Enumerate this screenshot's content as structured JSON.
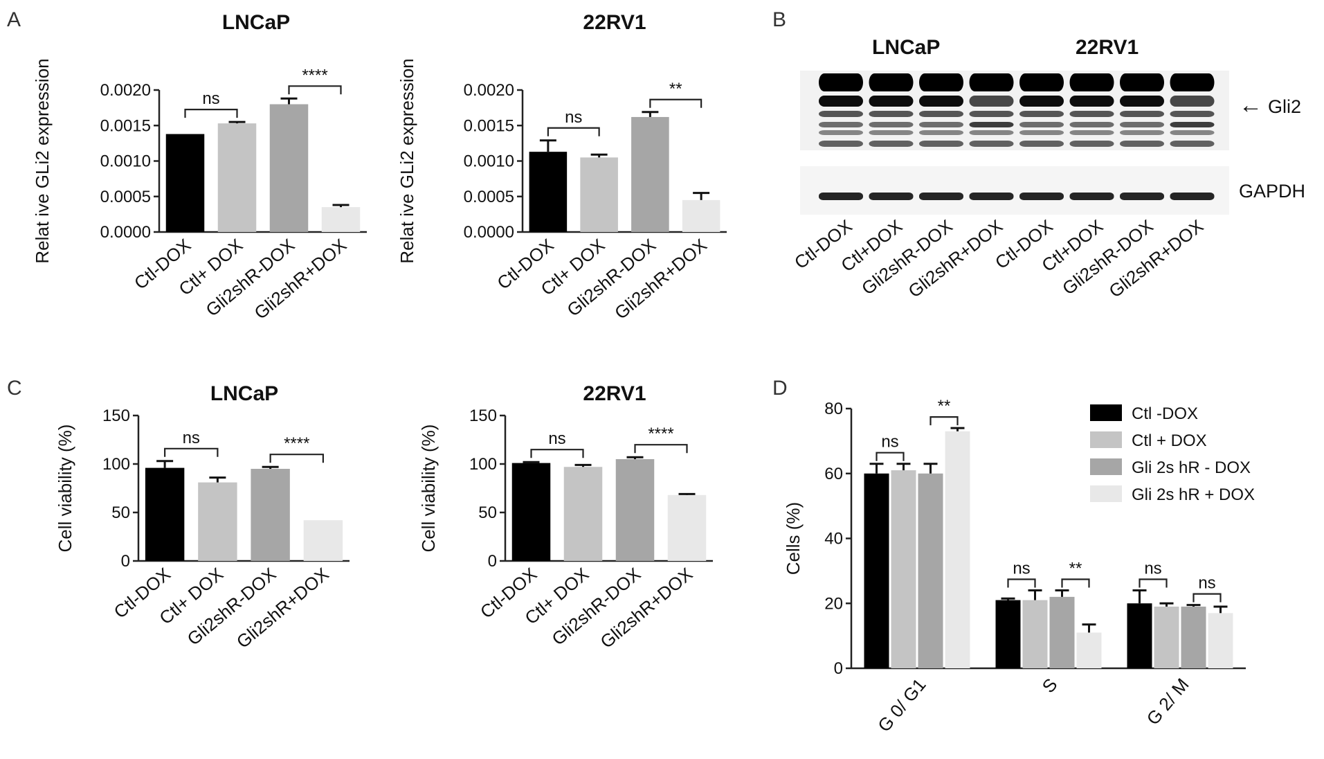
{
  "panel_letters": [
    "A",
    "B",
    "C",
    "D"
  ],
  "colors": {
    "black": "#000000",
    "light_gray": "#c4c4c4",
    "mid_gray": "#a6a6a6",
    "very_light": "#e8e8e8"
  },
  "chart_data": [
    {
      "id": "A1",
      "type": "bar",
      "title": "LNCaP",
      "ylabel": "Relat ive GLi2 expression",
      "categories": [
        "Ctl-DOX",
        "Ctl+ DOX",
        "Gli2shR-DOX",
        "Gli2shR+DOX"
      ],
      "values": [
        0.00138,
        0.00153,
        0.0018,
        0.00035
      ],
      "errors": [
        0,
        2e-05,
        8e-05,
        3e-05
      ],
      "ylim": [
        0,
        0.002
      ],
      "yticks": [
        "0.0000",
        "0.0005",
        "0.0010",
        "0.0015",
        "0.0020"
      ],
      "ytick_values": [
        0,
        0.0005,
        0.001,
        0.0015,
        0.002
      ],
      "significance": [
        {
          "from": 0,
          "to": 1,
          "label": "ns"
        },
        {
          "from": 2,
          "to": 3,
          "label": "****"
        }
      ]
    },
    {
      "id": "A2",
      "type": "bar",
      "title": "22RV1",
      "ylabel": "Relat ive GLi2 expression",
      "categories": [
        "Ctl-DOX",
        "Ctl+ DOX",
        "Gli2shR-DOX",
        "Gli2shR+DOX"
      ],
      "values": [
        0.00113,
        0.00105,
        0.00162,
        0.00045
      ],
      "errors": [
        0.00016,
        4e-05,
        7e-05,
        0.0001
      ],
      "ylim": [
        0,
        0.002
      ],
      "yticks": [
        "0.0000",
        "0.0005",
        "0.0010",
        "0.0015",
        "0.0020"
      ],
      "ytick_values": [
        0,
        0.0005,
        0.001,
        0.0015,
        0.002
      ],
      "significance": [
        {
          "from": 0,
          "to": 1,
          "label": "ns"
        },
        {
          "from": 2,
          "to": 3,
          "label": "**"
        }
      ]
    },
    {
      "id": "C1",
      "type": "bar",
      "title": "LNCaP",
      "ylabel": "Cell viability (%)",
      "categories": [
        "Ctl-DOX",
        "Ctl+ DOX",
        "Gli2shR-DOX",
        "Gli2shR+DOX"
      ],
      "values": [
        96,
        81,
        95,
        42
      ],
      "errors": [
        7,
        5,
        2,
        0
      ],
      "ylim": [
        0,
        150
      ],
      "yticks": [
        "0",
        "50",
        "100",
        "150"
      ],
      "ytick_values": [
        0,
        50,
        100,
        150
      ],
      "significance": [
        {
          "from": 0,
          "to": 1,
          "label": "ns"
        },
        {
          "from": 2,
          "to": 3,
          "label": "****"
        }
      ]
    },
    {
      "id": "C2",
      "type": "bar",
      "title": "22RV1",
      "ylabel": "Cell viability (%)",
      "categories": [
        "Ctl-DOX",
        "Ctl+ DOX",
        "Gli2shR-DOX",
        "Gli2shR+DOX"
      ],
      "values": [
        101,
        97,
        105,
        68
      ],
      "errors": [
        1,
        2,
        2,
        1
      ],
      "ylim": [
        0,
        150
      ],
      "yticks": [
        "0",
        "50",
        "100",
        "150"
      ],
      "ytick_values": [
        0,
        50,
        100,
        150
      ],
      "significance": [
        {
          "from": 0,
          "to": 1,
          "label": "ns"
        },
        {
          "from": 2,
          "to": 3,
          "label": "****"
        }
      ]
    },
    {
      "id": "D",
      "type": "bar",
      "ylabel": "Cells (%)",
      "categories": [
        "G 0/ G1",
        "S",
        "G 2/ M"
      ],
      "ylim": [
        0,
        80
      ],
      "yticks": [
        "0",
        "20",
        "40",
        "60",
        "80"
      ],
      "ytick_values": [
        0,
        20,
        40,
        60,
        80
      ],
      "legend_position": "top-right",
      "series": [
        {
          "name": "Ctl -DOX",
          "values": [
            60,
            21,
            20
          ],
          "errors": [
            3,
            0.5,
            4
          ]
        },
        {
          "name": "Ctl + DOX",
          "values": [
            61,
            21,
            19
          ],
          "errors": [
            2,
            3,
            1
          ]
        },
        {
          "name": "Gli 2s hR - DOX",
          "values": [
            60,
            22,
            19
          ],
          "errors": [
            3,
            2,
            0.5
          ]
        },
        {
          "name": "Gli 2s hR + DOX",
          "values": [
            73,
            11,
            17
          ],
          "errors": [
            1,
            2.5,
            2
          ]
        }
      ],
      "significance": [
        {
          "group": 0,
          "from": 0,
          "to": 1,
          "label": "ns"
        },
        {
          "group": 0,
          "from": 2,
          "to": 3,
          "label": "**"
        },
        {
          "group": 1,
          "from": 0,
          "to": 1,
          "label": "ns"
        },
        {
          "group": 1,
          "from": 2,
          "to": 3,
          "label": "**"
        },
        {
          "group": 2,
          "from": 0,
          "to": 1,
          "label": "ns"
        },
        {
          "group": 2,
          "from": 2,
          "to": 3,
          "label": "ns"
        }
      ]
    }
  ],
  "blot": {
    "cell_lines": [
      "LNCaP",
      "22RV1"
    ],
    "targets": [
      "Gli2",
      "GAPDH"
    ],
    "arrow": "←",
    "lanes": [
      "Ctl-DOX",
      "Ctl+DOX",
      "Gli2shR-DOX",
      "Gli2shR+DOX",
      "Ctl-DOX",
      "Ctl+DOX",
      "Gli2shR-DOX",
      "Gli2shR+DOX"
    ]
  }
}
